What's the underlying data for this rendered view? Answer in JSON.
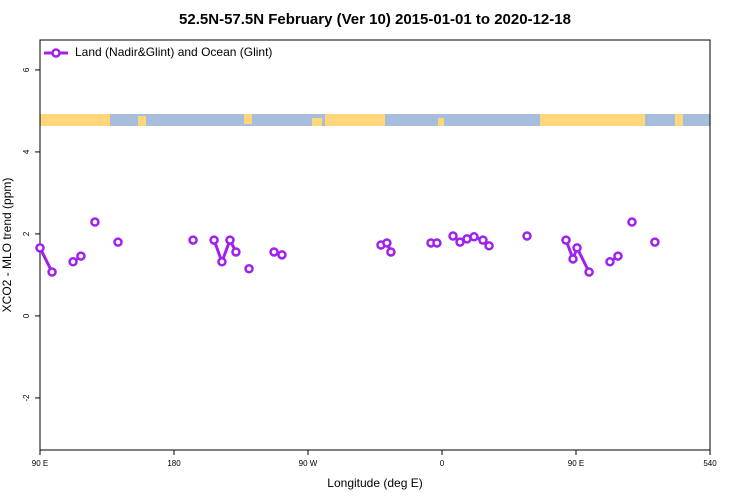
{
  "chart_data": {
    "type": "line",
    "title": "52.5N-57.5N February (Ver 10)   2015-01-01 to 2020-12-18",
    "x_label": "Longitude (deg E)",
    "y_label": "XCO2 - MLO trend (ppm)",
    "xlim": [
      90,
      540
    ],
    "ylim": [
      -3.27,
      6.73
    ],
    "xticks": [
      {
        "value": 90,
        "label": "90 E"
      },
      180,
      {
        "value": 270,
        "label": "90 W"
      },
      {
        "value": 360,
        "label": "0"
      },
      {
        "value": 450,
        "label": "90 E"
      },
      540
    ],
    "yticks": [
      -2,
      0,
      2,
      4,
      6
    ],
    "legend": "top-left",
    "series": [
      {
        "name": "Land (Nadir&Glint) and Ocean (Glint)",
        "color": "#a020f0",
        "x": [
          90,
          98.1,
          null,
          112.2,
          117.5,
          null,
          126.9,
          null,
          142.4,
          null,
          192.8,
          null,
          206.9,
          212.2,
          217.6,
          221.6,
          null,
          230.4,
          null,
          247.2,
          252.5,
          null,
          319.0,
          323.0,
          325.7,
          null,
          352.6,
          356.6,
          null,
          367.4,
          372.1,
          376.8,
          381.5,
          387.5,
          391.6,
          null,
          417.1,
          null,
          443.3,
          448.0,
          450.7,
          458.8,
          null,
          472.8,
          478.2,
          null,
          487.6,
          null,
          503.0
        ],
        "values": [
          1.66,
          1.07,
          null,
          1.32,
          1.46,
          null,
          2.29,
          null,
          1.8,
          null,
          1.85,
          null,
          1.85,
          1.32,
          1.85,
          1.56,
          null,
          1.15,
          null,
          1.56,
          1.49,
          null,
          1.73,
          1.78,
          1.56,
          null,
          1.78,
          1.78,
          null,
          1.95,
          1.8,
          1.88,
          1.93,
          1.85,
          1.71,
          null,
          1.95,
          null,
          1.85,
          1.39,
          1.66,
          1.07,
          null,
          1.32,
          1.46,
          null,
          2.29,
          null,
          1.8
        ]
      }
    ]
  }
}
